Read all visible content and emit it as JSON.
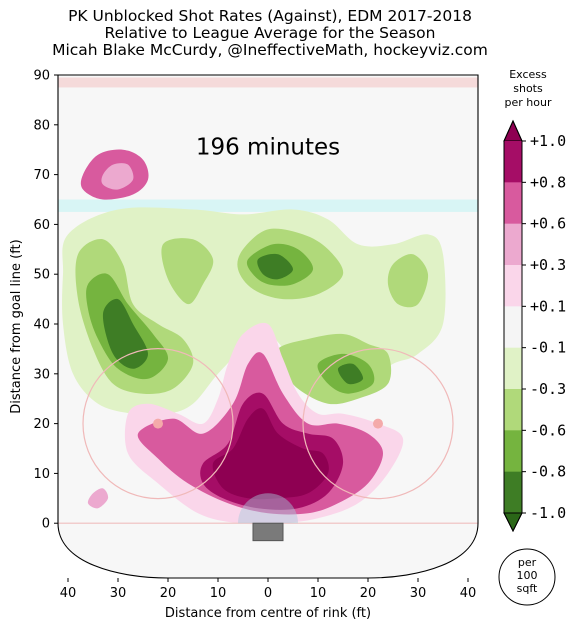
{
  "chart_data": {
    "type": "heatmap",
    "title_lines": [
      "PK Unblocked Shot Rates (Against), EDM 2017-2018",
      "Relative to League Average for the Season",
      "Micah Blake McCurdy, @IneffectiveMath, hockeyviz.com"
    ],
    "xlabel": "Distance from centre of rink (ft)",
    "ylabel": "Distance from goal line (ft)",
    "xlim": [
      -42,
      42
    ],
    "ylim": [
      -11,
      90
    ],
    "x_ticks": [
      -40,
      -30,
      -20,
      -10,
      0,
      10,
      20,
      30,
      40
    ],
    "x_tick_labels": [
      "40",
      "30",
      "20",
      "10",
      "0",
      "10",
      "20",
      "30",
      "40"
    ],
    "y_ticks": [
      0,
      10,
      20,
      30,
      40,
      50,
      60,
      70,
      80,
      90
    ],
    "y_tick_labels": [
      "0",
      "10",
      "20",
      "30",
      "40",
      "50",
      "60",
      "70",
      "80",
      "90"
    ],
    "annotation": "196 minutes",
    "colorbar": {
      "title_lines": [
        "Excess",
        "shots",
        "per hour"
      ],
      "labels": [
        "+1.0",
        "+0.8",
        "+0.6",
        "+0.3",
        "+0.1",
        "-0.1",
        "-0.3",
        "-0.6",
        "-0.8",
        "-1.0"
      ],
      "colors": [
        "#a50d66",
        "#d85a9e",
        "#eca9cf",
        "#fad6ea",
        "#f5f5f5",
        "#e0f2c6",
        "#b0d97a",
        "#75b43f",
        "#3e7d25"
      ],
      "extend_top_color": "#8e0052",
      "extend_bottom_color": "#2b6718"
    },
    "unit_circle_lines": [
      "per",
      "100",
      "sqft"
    ],
    "regions": [
      {
        "level": 0.5,
        "points": [
          [
            -37,
            70
          ],
          [
            -34,
            74
          ],
          [
            -29,
            75
          ],
          [
            -25,
            73
          ],
          [
            -24,
            69
          ],
          [
            -27,
            66
          ],
          [
            -33,
            65
          ],
          [
            -37,
            67
          ]
        ]
      },
      {
        "level": 0.3,
        "points": [
          [
            -33,
            70
          ],
          [
            -31,
            72
          ],
          [
            -28,
            72
          ],
          [
            -27,
            69
          ],
          [
            -30,
            67
          ],
          [
            -33,
            68
          ]
        ]
      },
      {
        "level": 0.3,
        "points": [
          [
            -35,
            6
          ],
          [
            -33,
            7
          ],
          [
            -32,
            5
          ],
          [
            -34,
            3
          ],
          [
            -36,
            4
          ]
        ]
      },
      {
        "level": -0.2,
        "points": [
          [
            -40,
            58
          ],
          [
            -30,
            63
          ],
          [
            -15,
            63
          ],
          [
            -5,
            62
          ],
          [
            5,
            63
          ],
          [
            12,
            61
          ],
          [
            18,
            56
          ],
          [
            25,
            56
          ],
          [
            32,
            58
          ],
          [
            35,
            54
          ],
          [
            35,
            40
          ],
          [
            30,
            34
          ],
          [
            25,
            32
          ],
          [
            18,
            28
          ],
          [
            12,
            27
          ],
          [
            8,
            30
          ],
          [
            4,
            34
          ],
          [
            0,
            38
          ],
          [
            -4,
            36
          ],
          [
            -10,
            30
          ],
          [
            -15,
            24
          ],
          [
            -20,
            22
          ],
          [
            -27,
            22
          ],
          [
            -34,
            24
          ],
          [
            -39,
            30
          ],
          [
            -41,
            40
          ],
          [
            -41,
            50
          ]
        ]
      },
      {
        "level": -0.2,
        "points": [
          [
            -4,
            2
          ],
          [
            4,
            2
          ],
          [
            4,
            0
          ],
          [
            -4,
            0
          ]
        ]
      },
      {
        "level": -0.2,
        "points": [
          [
            -2,
            0
          ],
          [
            2,
            0
          ],
          [
            2,
            -2
          ],
          [
            -2,
            -2
          ]
        ]
      },
      {
        "level": -0.45,
        "points": [
          [
            -38,
            54
          ],
          [
            -33,
            57
          ],
          [
            -29,
            52
          ],
          [
            -27,
            44
          ],
          [
            -22,
            40
          ],
          [
            -17,
            37
          ],
          [
            -15,
            32
          ],
          [
            -19,
            27
          ],
          [
            -25,
            26
          ],
          [
            -31,
            28
          ],
          [
            -35,
            35
          ],
          [
            -38,
            45
          ]
        ]
      },
      {
        "level": -0.45,
        "points": [
          [
            -21,
            56
          ],
          [
            -15,
            57
          ],
          [
            -11,
            53
          ],
          [
            -13,
            48
          ],
          [
            -16,
            44
          ],
          [
            -20,
            49
          ]
        ]
      },
      {
        "level": -0.45,
        "points": [
          [
            -5,
            55
          ],
          [
            0,
            59
          ],
          [
            7,
            58
          ],
          [
            12,
            55
          ],
          [
            15,
            50
          ],
          [
            10,
            46
          ],
          [
            3,
            45
          ],
          [
            -3,
            47
          ],
          [
            -6,
            51
          ]
        ]
      },
      {
        "level": -0.45,
        "points": [
          [
            25,
            52
          ],
          [
            29,
            54
          ],
          [
            32,
            50
          ],
          [
            30,
            44
          ],
          [
            26,
            44
          ],
          [
            24,
            48
          ]
        ]
      },
      {
        "level": -0.45,
        "points": [
          [
            2,
            35
          ],
          [
            8,
            37
          ],
          [
            15,
            38
          ],
          [
            20,
            36
          ],
          [
            24,
            34
          ],
          [
            24,
            28
          ],
          [
            18,
            25
          ],
          [
            12,
            24
          ],
          [
            6,
            27
          ],
          [
            3,
            31
          ]
        ]
      },
      {
        "level": -0.7,
        "points": [
          [
            -36,
            48
          ],
          [
            -32,
            50
          ],
          [
            -28,
            44
          ],
          [
            -23,
            38
          ],
          [
            -20,
            33
          ],
          [
            -24,
            29
          ],
          [
            -30,
            31
          ],
          [
            -34,
            37
          ],
          [
            -36,
            43
          ]
        ]
      },
      {
        "level": -0.7,
        "points": [
          [
            -4,
            53
          ],
          [
            1,
            56
          ],
          [
            6,
            55
          ],
          [
            9,
            51
          ],
          [
            5,
            48
          ],
          [
            0,
            48
          ],
          [
            -3,
            50
          ]
        ]
      },
      {
        "level": -0.7,
        "points": [
          [
            10,
            32
          ],
          [
            15,
            34
          ],
          [
            20,
            32
          ],
          [
            21,
            28
          ],
          [
            16,
            26
          ],
          [
            12,
            28
          ]
        ]
      },
      {
        "level": -0.9,
        "points": [
          [
            -33,
            42
          ],
          [
            -30,
            45
          ],
          [
            -27,
            40
          ],
          [
            -24,
            34
          ],
          [
            -27,
            31
          ],
          [
            -31,
            34
          ]
        ]
      },
      {
        "level": -0.9,
        "points": [
          [
            -2,
            53
          ],
          [
            2,
            54
          ],
          [
            5,
            51
          ],
          [
            2,
            49
          ],
          [
            -1,
            50
          ]
        ]
      },
      {
        "level": -0.9,
        "points": [
          [
            14,
            31
          ],
          [
            17,
            32
          ],
          [
            19,
            29
          ],
          [
            16,
            28
          ]
        ]
      },
      {
        "level": 0.2,
        "points": [
          [
            -28,
            22
          ],
          [
            -24,
            24
          ],
          [
            -18,
            22
          ],
          [
            -13,
            20
          ],
          [
            -10,
            25
          ],
          [
            -8,
            32
          ],
          [
            -5,
            38
          ],
          [
            0,
            40
          ],
          [
            3,
            33
          ],
          [
            6,
            26
          ],
          [
            10,
            22
          ],
          [
            15,
            22
          ],
          [
            22,
            20
          ],
          [
            27,
            17
          ],
          [
            24,
            10
          ],
          [
            18,
            4
          ],
          [
            10,
            1
          ],
          [
            2,
            0
          ],
          [
            -6,
            0
          ],
          [
            -14,
            2
          ],
          [
            -22,
            8
          ],
          [
            -28,
            14
          ]
        ]
      },
      {
        "level": 0.45,
        "points": [
          [
            -26,
            18
          ],
          [
            -19,
            21
          ],
          [
            -13,
            18
          ],
          [
            -7,
            24
          ],
          [
            -4,
            32
          ],
          [
            -1,
            34
          ],
          [
            3,
            26
          ],
          [
            8,
            20
          ],
          [
            14,
            20
          ],
          [
            20,
            18
          ],
          [
            23,
            14
          ],
          [
            20,
            8
          ],
          [
            14,
            4
          ],
          [
            8,
            2
          ],
          [
            0,
            2
          ],
          [
            -8,
            4
          ],
          [
            -16,
            8
          ],
          [
            -22,
            13
          ]
        ]
      },
      {
        "level": 0.7,
        "points": [
          [
            -13,
            12
          ],
          [
            -8,
            16
          ],
          [
            -5,
            24
          ],
          [
            -1,
            26
          ],
          [
            3,
            20
          ],
          [
            8,
            18
          ],
          [
            13,
            17
          ],
          [
            15,
            12
          ],
          [
            12,
            6
          ],
          [
            6,
            3
          ],
          [
            -2,
            3
          ],
          [
            -9,
            5
          ],
          [
            -13,
            8
          ]
        ]
      },
      {
        "level": 0.9,
        "points": [
          [
            -11,
            12
          ],
          [
            -7,
            15
          ],
          [
            -4,
            21
          ],
          [
            -1,
            23
          ],
          [
            2,
            18
          ],
          [
            7,
            15
          ],
          [
            11,
            14
          ],
          [
            12,
            10
          ],
          [
            8,
            6
          ],
          [
            2,
            5
          ],
          [
            -4,
            5
          ],
          [
            -9,
            7
          ]
        ]
      }
    ]
  }
}
